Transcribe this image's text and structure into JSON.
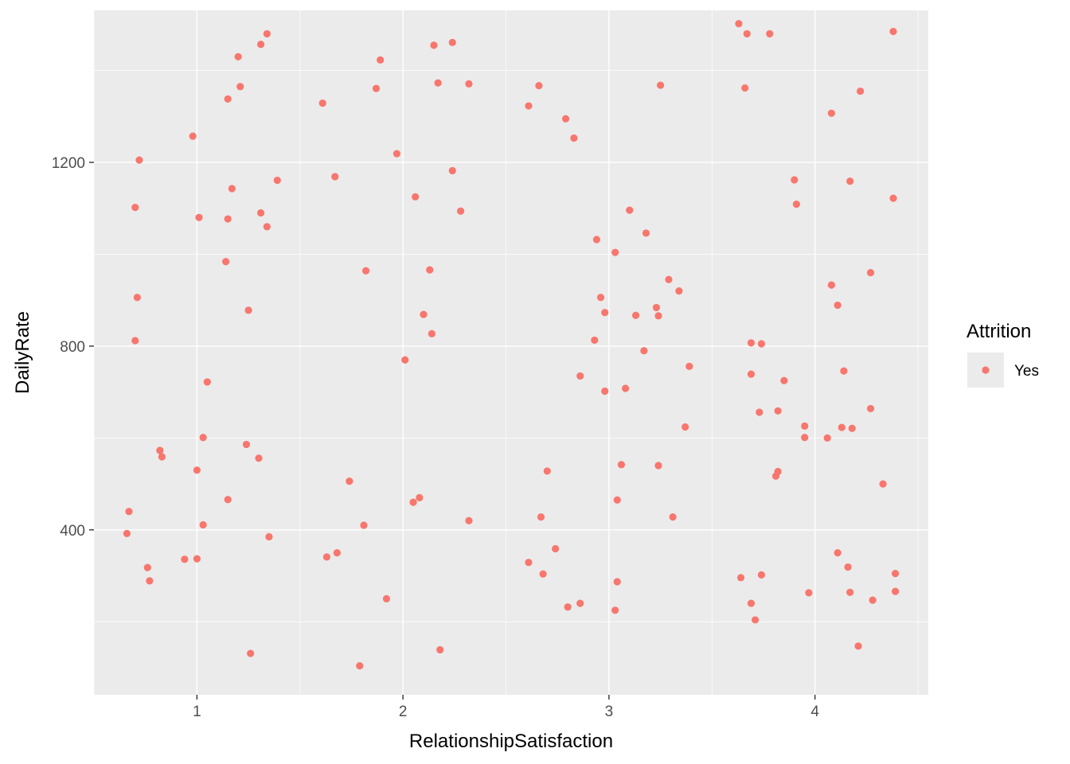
{
  "chart_data": {
    "type": "scatter",
    "title": "",
    "xlabel": "RelationshipSatisfaction",
    "ylabel": "DailyRate",
    "xlim": [
      0.5,
      4.55
    ],
    "ylim": [
      41,
      1531
    ],
    "x_ticks": [
      1,
      2,
      3,
      4
    ],
    "x_tick_labels": [
      "1",
      "2",
      "3",
      "4"
    ],
    "y_ticks": [
      400,
      800,
      1200
    ],
    "y_tick_labels": [
      "400",
      "800",
      "1200"
    ],
    "grid": true,
    "background": "#ebebeb",
    "gridline_color": "#ffffff",
    "legend": {
      "title": "Attrition",
      "placement": "right",
      "entries": [
        {
          "label": "Yes",
          "color": "#f8766d"
        }
      ]
    },
    "series": [
      {
        "name": "Yes",
        "color": "#f8766d",
        "points": [
          {
            "x": 0.66,
            "y": 392
          },
          {
            "x": 0.67,
            "y": 440
          },
          {
            "x": 0.7,
            "y": 1102
          },
          {
            "x": 0.7,
            "y": 812
          },
          {
            "x": 0.71,
            "y": 906
          },
          {
            "x": 0.72,
            "y": 1205
          },
          {
            "x": 0.76,
            "y": 318
          },
          {
            "x": 0.77,
            "y": 289
          },
          {
            "x": 0.82,
            "y": 573
          },
          {
            "x": 0.83,
            "y": 559
          },
          {
            "x": 0.94,
            "y": 336
          },
          {
            "x": 0.98,
            "y": 1257
          },
          {
            "x": 1.0,
            "y": 530
          },
          {
            "x": 1.0,
            "y": 337
          },
          {
            "x": 1.01,
            "y": 1080
          },
          {
            "x": 1.03,
            "y": 601
          },
          {
            "x": 1.03,
            "y": 411
          },
          {
            "x": 1.05,
            "y": 722
          },
          {
            "x": 1.14,
            "y": 984
          },
          {
            "x": 1.15,
            "y": 1338
          },
          {
            "x": 1.15,
            "y": 1077
          },
          {
            "x": 1.15,
            "y": 466
          },
          {
            "x": 1.17,
            "y": 1143
          },
          {
            "x": 1.2,
            "y": 1430
          },
          {
            "x": 1.21,
            "y": 1365
          },
          {
            "x": 1.24,
            "y": 586
          },
          {
            "x": 1.25,
            "y": 878
          },
          {
            "x": 1.26,
            "y": 131
          },
          {
            "x": 1.3,
            "y": 556
          },
          {
            "x": 1.31,
            "y": 1090
          },
          {
            "x": 1.31,
            "y": 1457
          },
          {
            "x": 1.34,
            "y": 1060
          },
          {
            "x": 1.34,
            "y": 1480
          },
          {
            "x": 1.35,
            "y": 385
          },
          {
            "x": 1.39,
            "y": 1161
          },
          {
            "x": 1.61,
            "y": 1329
          },
          {
            "x": 1.63,
            "y": 341
          },
          {
            "x": 1.67,
            "y": 1169
          },
          {
            "x": 1.68,
            "y": 350
          },
          {
            "x": 1.74,
            "y": 506
          },
          {
            "x": 1.79,
            "y": 104
          },
          {
            "x": 1.81,
            "y": 410
          },
          {
            "x": 1.82,
            "y": 964
          },
          {
            "x": 1.87,
            "y": 1361
          },
          {
            "x": 1.89,
            "y": 1423
          },
          {
            "x": 1.92,
            "y": 250
          },
          {
            "x": 1.97,
            "y": 1219
          },
          {
            "x": 2.01,
            "y": 770
          },
          {
            "x": 2.05,
            "y": 460
          },
          {
            "x": 2.06,
            "y": 1125
          },
          {
            "x": 2.08,
            "y": 470
          },
          {
            "x": 2.1,
            "y": 869
          },
          {
            "x": 2.13,
            "y": 966
          },
          {
            "x": 2.14,
            "y": 827
          },
          {
            "x": 2.15,
            "y": 1455
          },
          {
            "x": 2.17,
            "y": 1373
          },
          {
            "x": 2.18,
            "y": 139
          },
          {
            "x": 2.24,
            "y": 1182
          },
          {
            "x": 2.24,
            "y": 1461
          },
          {
            "x": 2.28,
            "y": 1094
          },
          {
            "x": 2.32,
            "y": 420
          },
          {
            "x": 2.32,
            "y": 1371
          },
          {
            "x": 2.61,
            "y": 1323
          },
          {
            "x": 2.61,
            "y": 329
          },
          {
            "x": 2.66,
            "y": 1367
          },
          {
            "x": 2.67,
            "y": 428
          },
          {
            "x": 2.68,
            "y": 304
          },
          {
            "x": 2.7,
            "y": 528
          },
          {
            "x": 2.74,
            "y": 359
          },
          {
            "x": 2.79,
            "y": 1295
          },
          {
            "x": 2.8,
            "y": 232
          },
          {
            "x": 2.83,
            "y": 1253
          },
          {
            "x": 2.86,
            "y": 240
          },
          {
            "x": 2.86,
            "y": 735
          },
          {
            "x": 2.93,
            "y": 813
          },
          {
            "x": 2.94,
            "y": 1032
          },
          {
            "x": 2.96,
            "y": 906
          },
          {
            "x": 2.98,
            "y": 873
          },
          {
            "x": 2.98,
            "y": 702
          },
          {
            "x": 3.03,
            "y": 225
          },
          {
            "x": 3.03,
            "y": 1004
          },
          {
            "x": 3.04,
            "y": 465
          },
          {
            "x": 3.04,
            "y": 287
          },
          {
            "x": 3.06,
            "y": 542
          },
          {
            "x": 3.08,
            "y": 708
          },
          {
            "x": 3.1,
            "y": 1096
          },
          {
            "x": 3.13,
            "y": 867
          },
          {
            "x": 3.17,
            "y": 790
          },
          {
            "x": 3.18,
            "y": 1046
          },
          {
            "x": 3.23,
            "y": 884
          },
          {
            "x": 3.24,
            "y": 540
          },
          {
            "x": 3.24,
            "y": 866
          },
          {
            "x": 3.25,
            "y": 1368
          },
          {
            "x": 3.29,
            "y": 945
          },
          {
            "x": 3.31,
            "y": 428
          },
          {
            "x": 3.34,
            "y": 920
          },
          {
            "x": 3.37,
            "y": 624
          },
          {
            "x": 3.39,
            "y": 756
          },
          {
            "x": 3.63,
            "y": 1502
          },
          {
            "x": 3.64,
            "y": 296
          },
          {
            "x": 3.66,
            "y": 1362
          },
          {
            "x": 3.67,
            "y": 1480
          },
          {
            "x": 3.69,
            "y": 240
          },
          {
            "x": 3.69,
            "y": 807
          },
          {
            "x": 3.69,
            "y": 739
          },
          {
            "x": 3.71,
            "y": 204
          },
          {
            "x": 3.73,
            "y": 656
          },
          {
            "x": 3.74,
            "y": 805
          },
          {
            "x": 3.74,
            "y": 302
          },
          {
            "x": 3.78,
            "y": 1480
          },
          {
            "x": 3.81,
            "y": 517
          },
          {
            "x": 3.82,
            "y": 659
          },
          {
            "x": 3.82,
            "y": 527
          },
          {
            "x": 3.85,
            "y": 725
          },
          {
            "x": 3.9,
            "y": 1162
          },
          {
            "x": 3.91,
            "y": 1109
          },
          {
            "x": 3.95,
            "y": 601
          },
          {
            "x": 3.95,
            "y": 626
          },
          {
            "x": 3.97,
            "y": 263
          },
          {
            "x": 4.06,
            "y": 600
          },
          {
            "x": 4.08,
            "y": 1307
          },
          {
            "x": 4.08,
            "y": 933
          },
          {
            "x": 4.11,
            "y": 350
          },
          {
            "x": 4.11,
            "y": 889
          },
          {
            "x": 4.13,
            "y": 623
          },
          {
            "x": 4.14,
            "y": 746
          },
          {
            "x": 4.16,
            "y": 319
          },
          {
            "x": 4.17,
            "y": 1159
          },
          {
            "x": 4.17,
            "y": 264
          },
          {
            "x": 4.18,
            "y": 621
          },
          {
            "x": 4.21,
            "y": 147
          },
          {
            "x": 4.22,
            "y": 1355
          },
          {
            "x": 4.27,
            "y": 960
          },
          {
            "x": 4.27,
            "y": 664
          },
          {
            "x": 4.28,
            "y": 247
          },
          {
            "x": 4.33,
            "y": 500
          },
          {
            "x": 4.38,
            "y": 1485
          },
          {
            "x": 4.38,
            "y": 1122
          },
          {
            "x": 4.39,
            "y": 305
          },
          {
            "x": 4.39,
            "y": 266
          }
        ]
      }
    ]
  }
}
